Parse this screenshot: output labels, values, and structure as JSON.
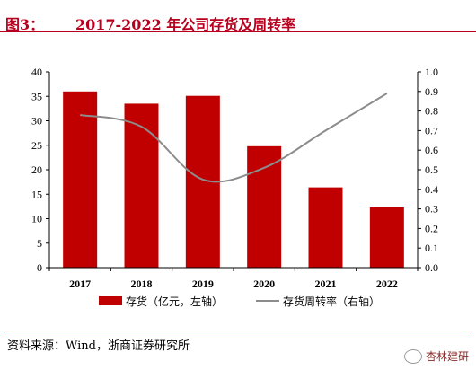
{
  "header": {
    "label": "图3：",
    "title": "2017-2022 年公司存货及周转率"
  },
  "chart_data": {
    "type": "bar+line",
    "categories": [
      "2017",
      "2018",
      "2019",
      "2020",
      "2021",
      "2022"
    ],
    "series": [
      {
        "name": "存货（亿元，左轴）",
        "type": "bar",
        "axis": "left",
        "values": [
          36.0,
          33.5,
          35.1,
          24.8,
          16.4,
          12.3
        ]
      },
      {
        "name": "存货周转率（右轴）",
        "type": "line",
        "axis": "right",
        "values": [
          0.78,
          0.72,
          0.45,
          0.51,
          0.7,
          0.89
        ]
      }
    ],
    "left_axis": {
      "min": 0,
      "max": 40,
      "step": 5,
      "ticks": [
        "0",
        "5",
        "10",
        "15",
        "20",
        "25",
        "30",
        "35",
        "40"
      ]
    },
    "right_axis": {
      "min": 0,
      "max": 1.0,
      "step": 0.1,
      "ticks": [
        "0.0",
        "0.1",
        "0.2",
        "0.3",
        "0.4",
        "0.5",
        "0.6",
        "0.7",
        "0.8",
        "0.9",
        "1.0"
      ]
    },
    "colors": {
      "bar": "#c00000",
      "line": "#8c8c8c"
    },
    "grid": false,
    "legend_position": "bottom"
  },
  "footer": {
    "source": "资料来源：Wind，浙商证券研究所",
    "watermark": "杏林建研"
  }
}
